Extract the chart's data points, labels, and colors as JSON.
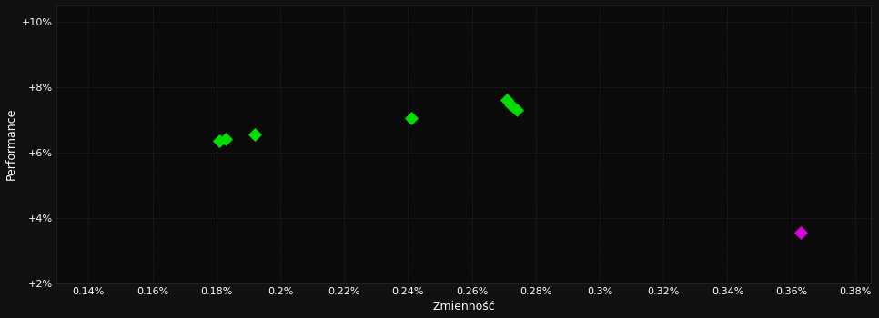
{
  "background_color": "#111111",
  "plot_bg_color": "#0a0a0a",
  "grid_color": "#2a2a2a",
  "text_color": "#ffffff",
  "xlabel": "Zmienność",
  "ylabel": "Performance",
  "xlim": [
    0.13,
    0.385
  ],
  "ylim": [
    0.02,
    0.105
  ],
  "xticks": [
    0.14,
    0.16,
    0.18,
    0.2,
    0.22,
    0.24,
    0.26,
    0.28,
    0.3,
    0.32,
    0.34,
    0.36,
    0.38
  ],
  "xtick_labels": [
    "0.14%",
    "0.16%",
    "0.18%",
    "0.2%",
    "0.22%",
    "0.24%",
    "0.26%",
    "0.28%",
    "0.3%",
    "0.32%",
    "0.34%",
    "0.36%",
    "0.38%"
  ],
  "yticks": [
    0.02,
    0.04,
    0.06,
    0.08,
    0.1
  ],
  "ytick_labels": [
    "+2%",
    "+4%",
    "+6%",
    "+8%",
    "+10%"
  ],
  "green_points": [
    [
      0.181,
      0.0635
    ],
    [
      0.183,
      0.064
    ],
    [
      0.192,
      0.0655
    ],
    [
      0.241,
      0.0705
    ],
    [
      0.271,
      0.076
    ],
    [
      0.272,
      0.0745
    ],
    [
      0.274,
      0.073
    ]
  ],
  "magenta_points": [
    [
      0.363,
      0.0355
    ]
  ],
  "green_color": "#00dd00",
  "magenta_color": "#dd00dd",
  "marker_size": 45,
  "xlabel_fontsize": 9,
  "ylabel_fontsize": 9,
  "tick_fontsize": 8
}
